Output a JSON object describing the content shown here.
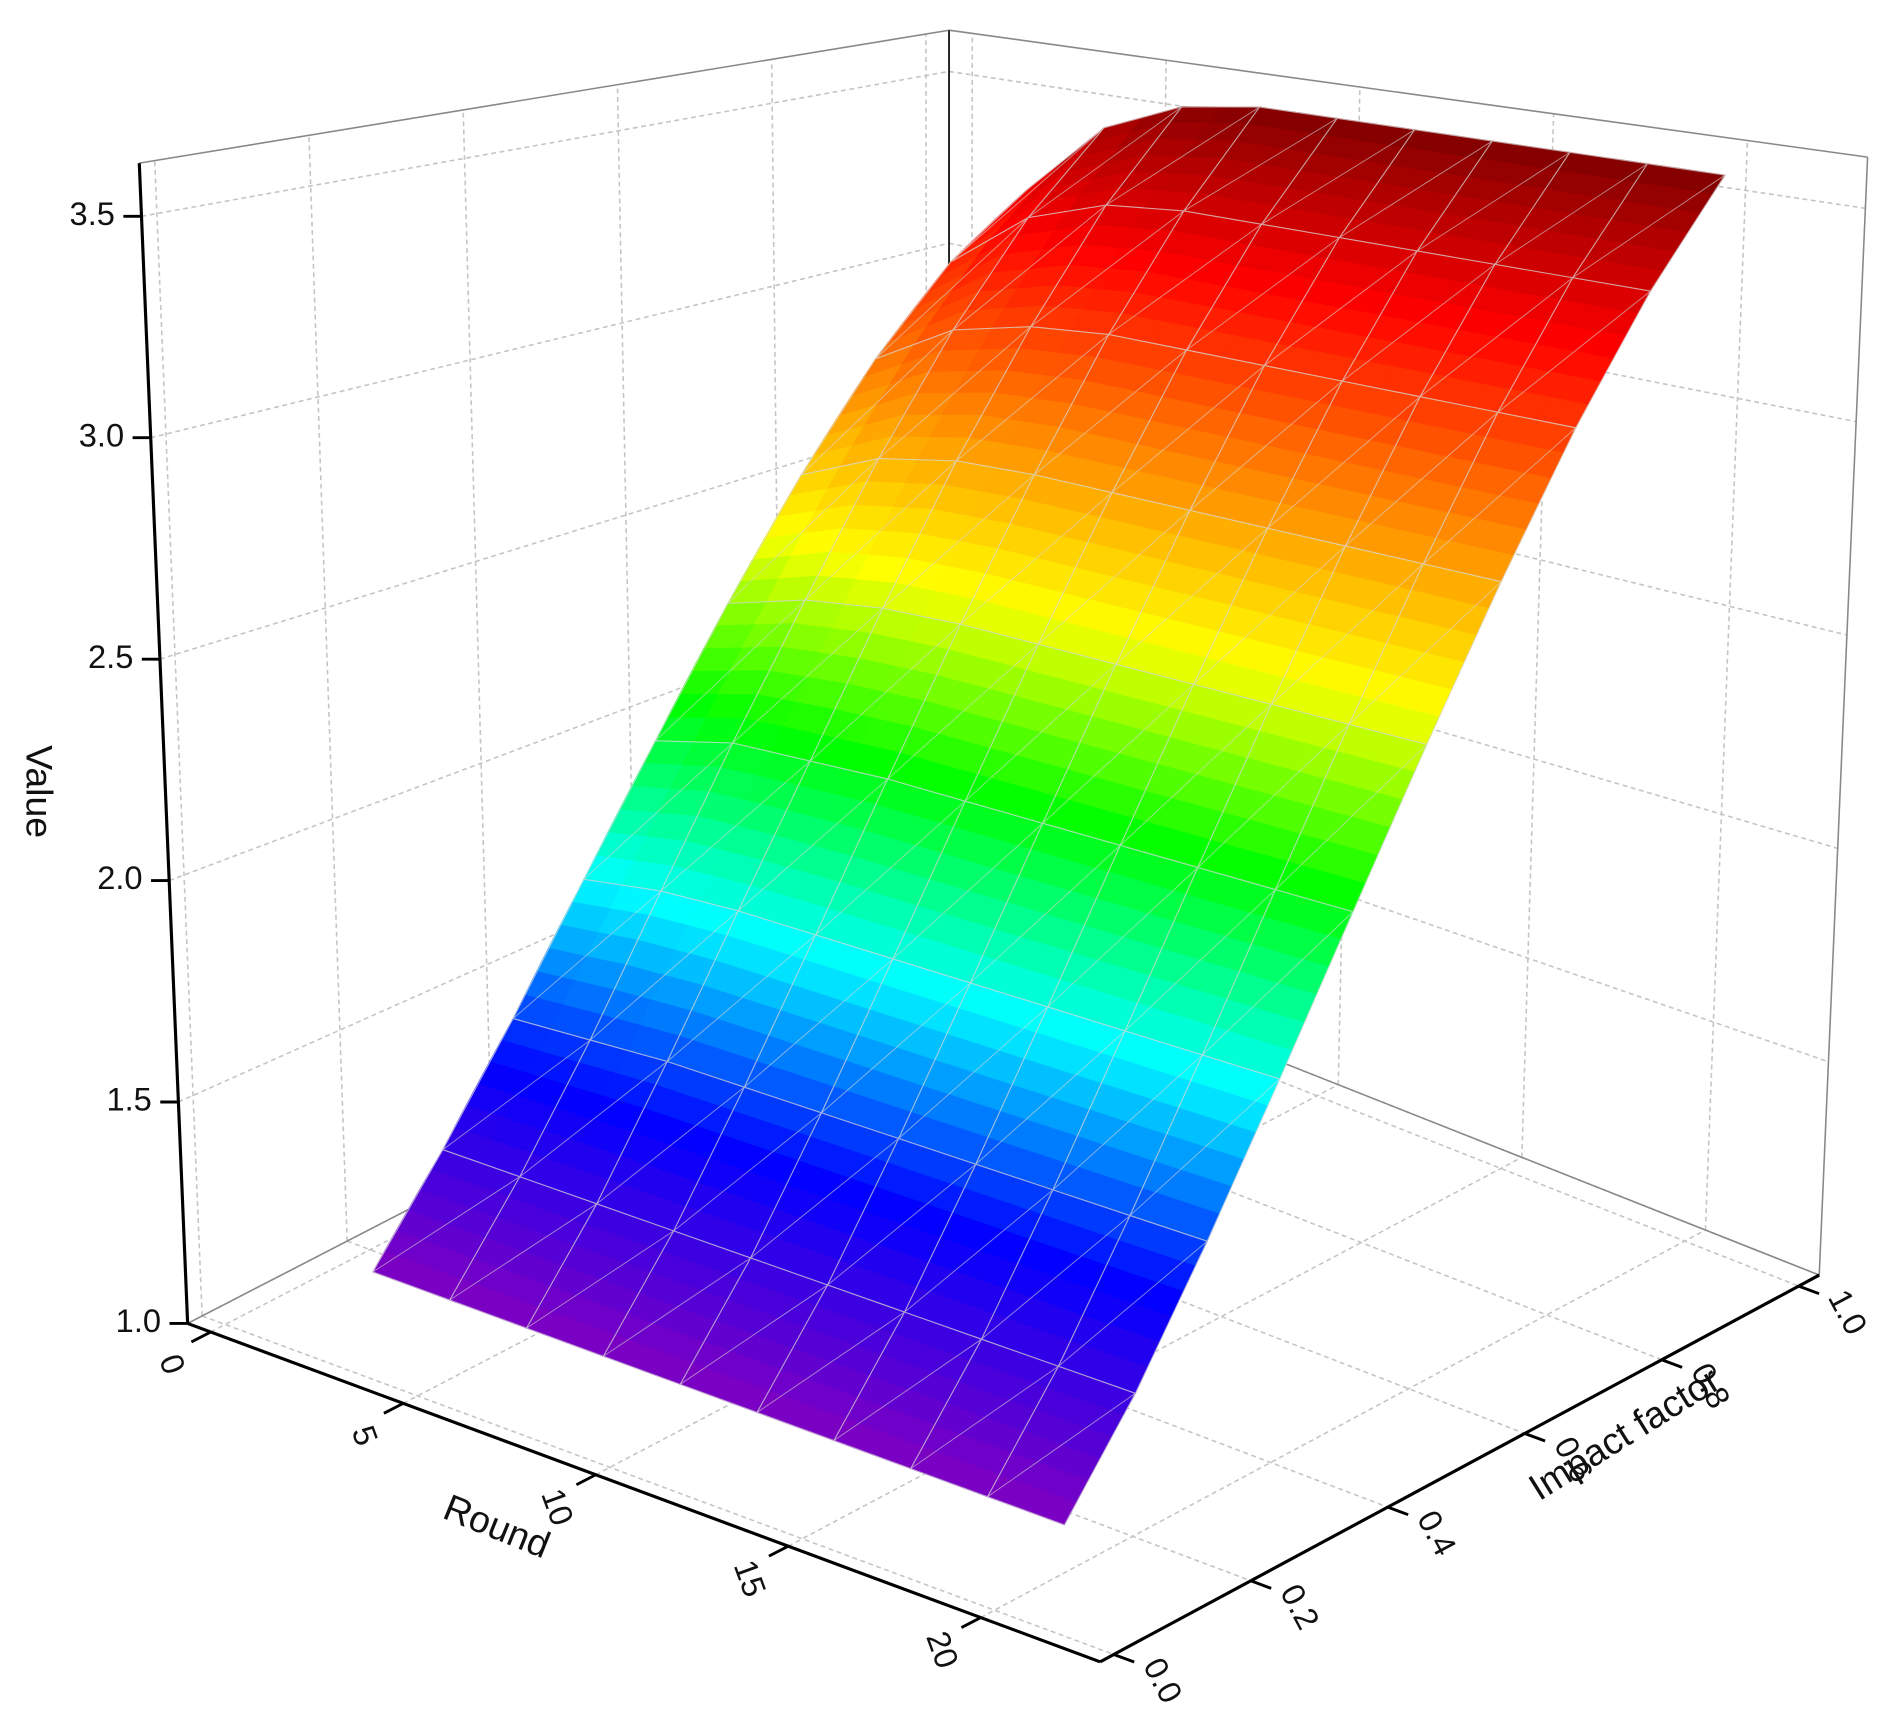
{
  "chart_data": {
    "type": "surface3d",
    "x_label": "Round",
    "y_label": "Impact factor",
    "z_label": "Value",
    "x": [
      2,
      4,
      6,
      8,
      10,
      12,
      14,
      16,
      18,
      20
    ],
    "y": [
      0.1,
      0.2,
      0.3,
      0.4,
      0.5,
      0.6,
      0.7,
      0.8,
      0.9,
      1.0
    ],
    "z": [
      [
        1.1,
        1.1,
        1.1,
        1.1,
        1.1,
        1.1,
        1.1,
        1.1,
        1.1,
        1.1
      ],
      [
        1.3,
        1.3,
        1.3,
        1.3,
        1.3,
        1.3,
        1.3,
        1.3,
        1.3,
        1.3
      ],
      [
        1.53,
        1.54,
        1.55,
        1.55,
        1.55,
        1.55,
        1.55,
        1.55,
        1.55,
        1.55
      ],
      [
        1.79,
        1.82,
        1.83,
        1.83,
        1.83,
        1.83,
        1.83,
        1.83,
        1.83,
        1.83
      ],
      [
        2.06,
        2.11,
        2.12,
        2.13,
        2.13,
        2.13,
        2.13,
        2.13,
        2.13,
        2.13
      ],
      [
        2.34,
        2.4,
        2.43,
        2.44,
        2.44,
        2.44,
        2.44,
        2.44,
        2.44,
        2.44
      ],
      [
        2.61,
        2.7,
        2.74,
        2.75,
        2.75,
        2.75,
        2.75,
        2.75,
        2.75,
        2.75
      ],
      [
        2.86,
        2.98,
        3.03,
        3.05,
        3.05,
        3.05,
        3.05,
        3.05,
        3.05,
        3.05
      ],
      [
        3.07,
        3.23,
        3.3,
        3.32,
        3.32,
        3.32,
        3.32,
        3.32,
        3.32,
        3.32
      ],
      [
        3.22,
        3.43,
        3.52,
        3.55,
        3.55,
        3.55,
        3.55,
        3.55,
        3.55,
        3.55
      ]
    ],
    "xlim": [
      -0.6,
      23.1
    ],
    "ylim": [
      -0.02,
      1.03
    ],
    "zlim": [
      1.0,
      3.62
    ],
    "xticks": [
      0,
      5,
      10,
      15,
      20
    ],
    "yticks": [
      {
        "value": 0,
        "label": "0.0"
      },
      0.2,
      0.4,
      0.6,
      0.8,
      {
        "value": 1,
        "label": "1.0"
      }
    ],
    "zticks": [
      {
        "value": 1,
        "label": "1.0"
      },
      1.5,
      {
        "value": 2,
        "label": "2.0"
      },
      2.5,
      {
        "value": 3,
        "label": "3.0"
      },
      3.5
    ],
    "colormap": [
      "#8000c0",
      "#0000ff",
      "#00ffff",
      "#00ff00",
      "#ffff00",
      "#ff8000",
      "#ff0000",
      "#800000"
    ],
    "grid": true
  }
}
